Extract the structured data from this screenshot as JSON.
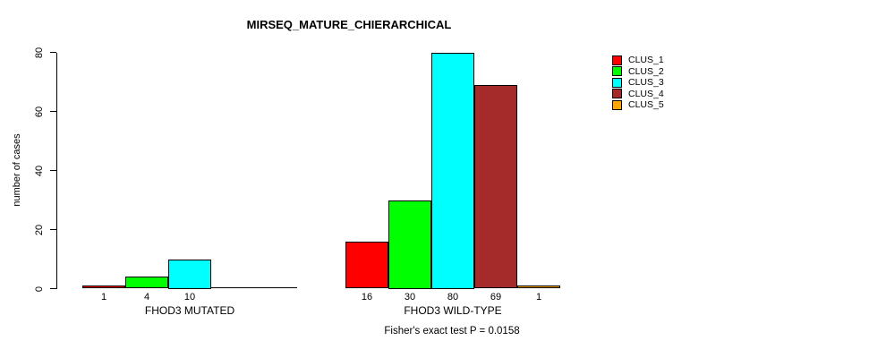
{
  "chart_data": {
    "type": "bar",
    "title": "MIRSEQ_MATURE_CHIERARCHICAL",
    "ylabel": "number of cases",
    "xlabel": "",
    "ylim": [
      0,
      80
    ],
    "yticks": [
      0,
      20,
      40,
      60,
      80
    ],
    "categories": [
      "FHOD3 MUTATED",
      "FHOD3 WILD-TYPE"
    ],
    "series": [
      {
        "name": "CLUS_1",
        "color": "#ff0000",
        "values": [
          1,
          16
        ]
      },
      {
        "name": "CLUS_2",
        "color": "#00ff00",
        "values": [
          4,
          30
        ]
      },
      {
        "name": "CLUS_3",
        "color": "#00ffff",
        "values": [
          10,
          80
        ]
      },
      {
        "name": "CLUS_4",
        "color": "#a52a2a",
        "values": [
          0,
          69
        ]
      },
      {
        "name": "CLUS_5",
        "color": "#ffa500",
        "values": [
          0,
          1
        ]
      }
    ],
    "bar_value_labels": true,
    "legend_position": "right",
    "grid": false,
    "axis_color": "#000000",
    "annotation": "Fisher's exact test P = 0.0158"
  }
}
